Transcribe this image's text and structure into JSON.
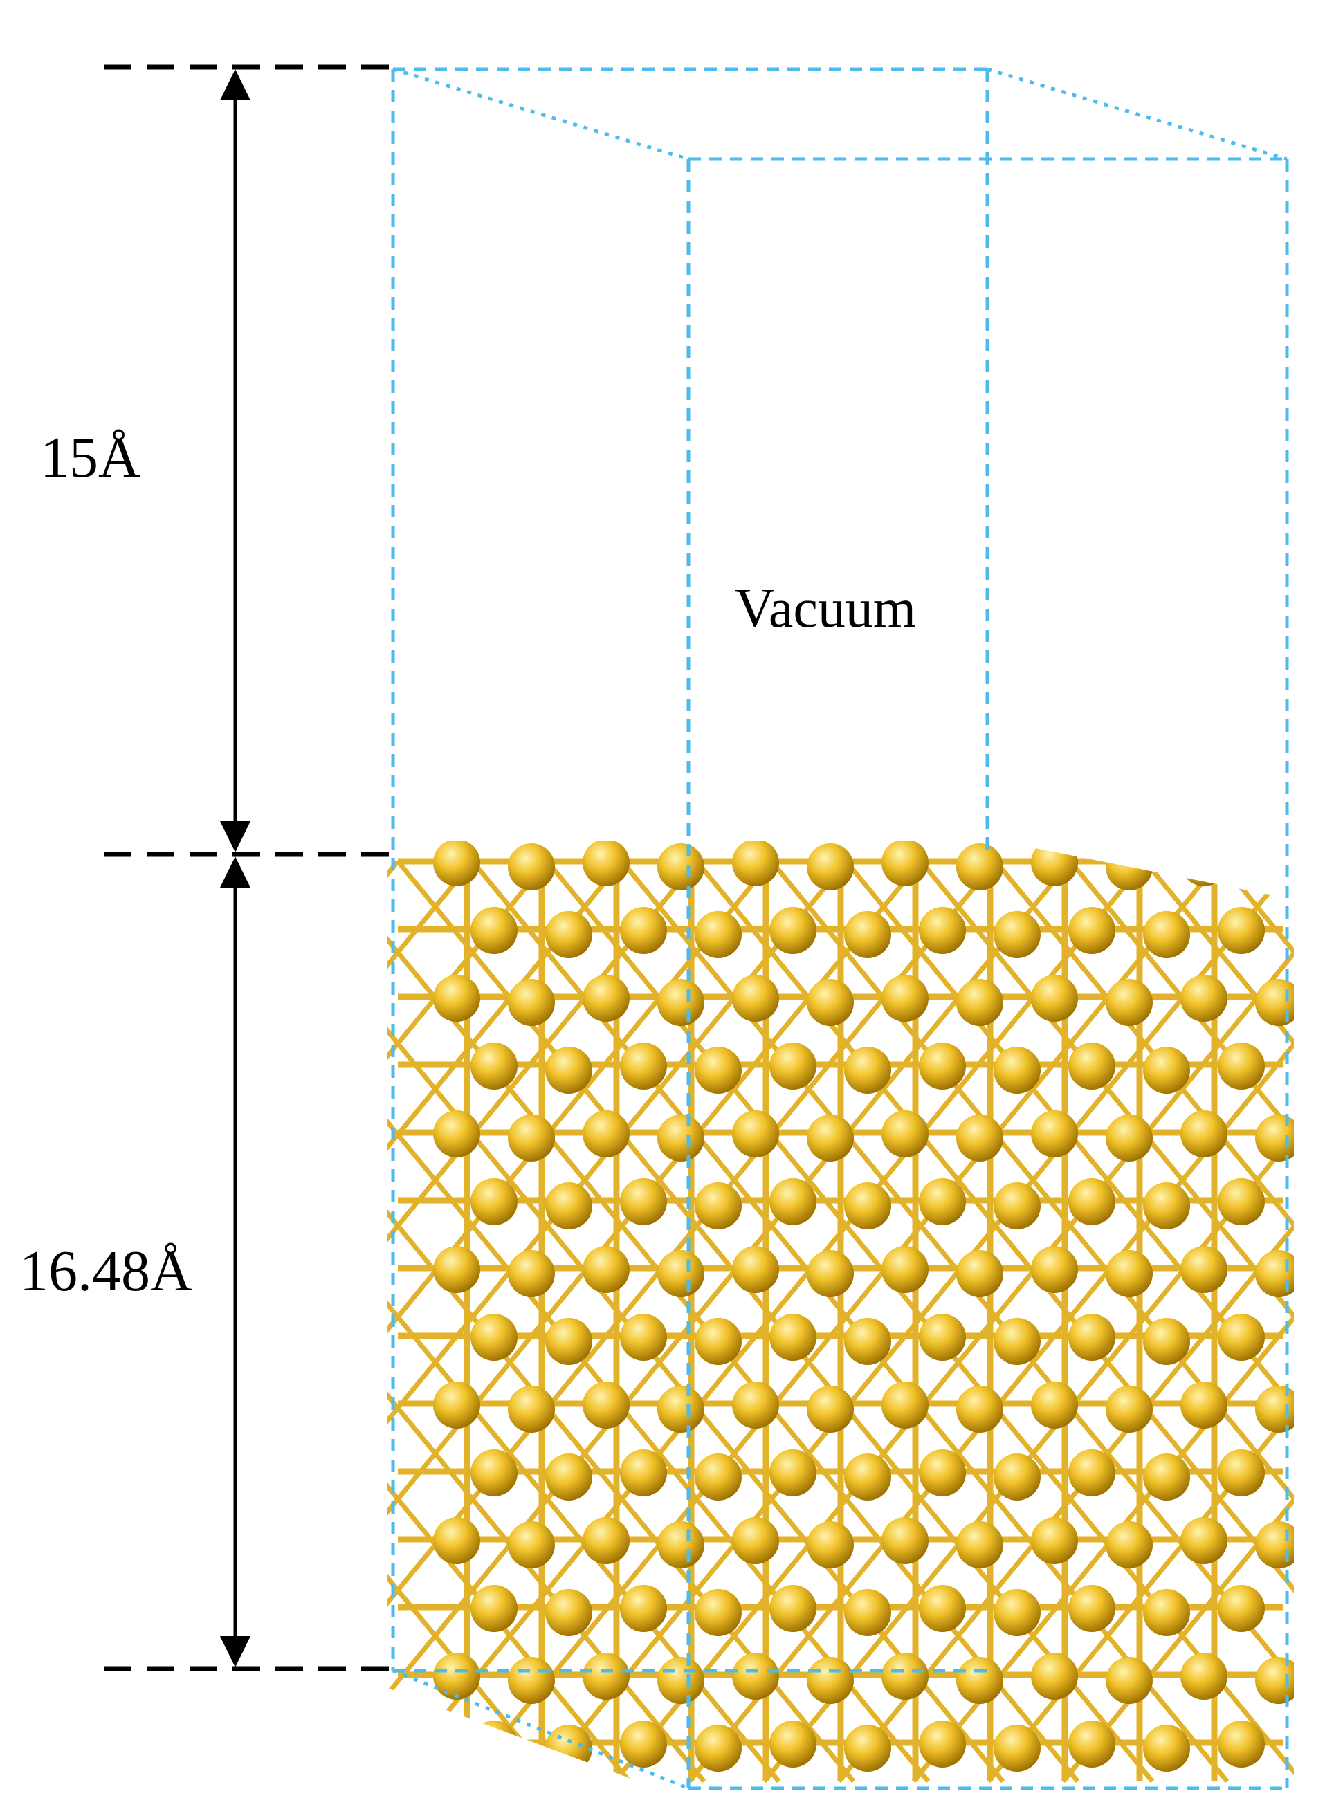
{
  "labels": {
    "vacuum_height": "15Å",
    "slab_height": "16.48Å",
    "vacuum_region": "Vacuum"
  },
  "colors": {
    "cell_edges": "#4dbbeb",
    "atoms": "#f0c020",
    "atom_highlight": "#fff1a8",
    "atom_shadow": "#a87a00",
    "bonds": "#e3b22b",
    "dimension_lines": "#000000"
  },
  "structure": {
    "atom_element_count_shown": "slab lattice",
    "style": "ball-and-stick"
  }
}
